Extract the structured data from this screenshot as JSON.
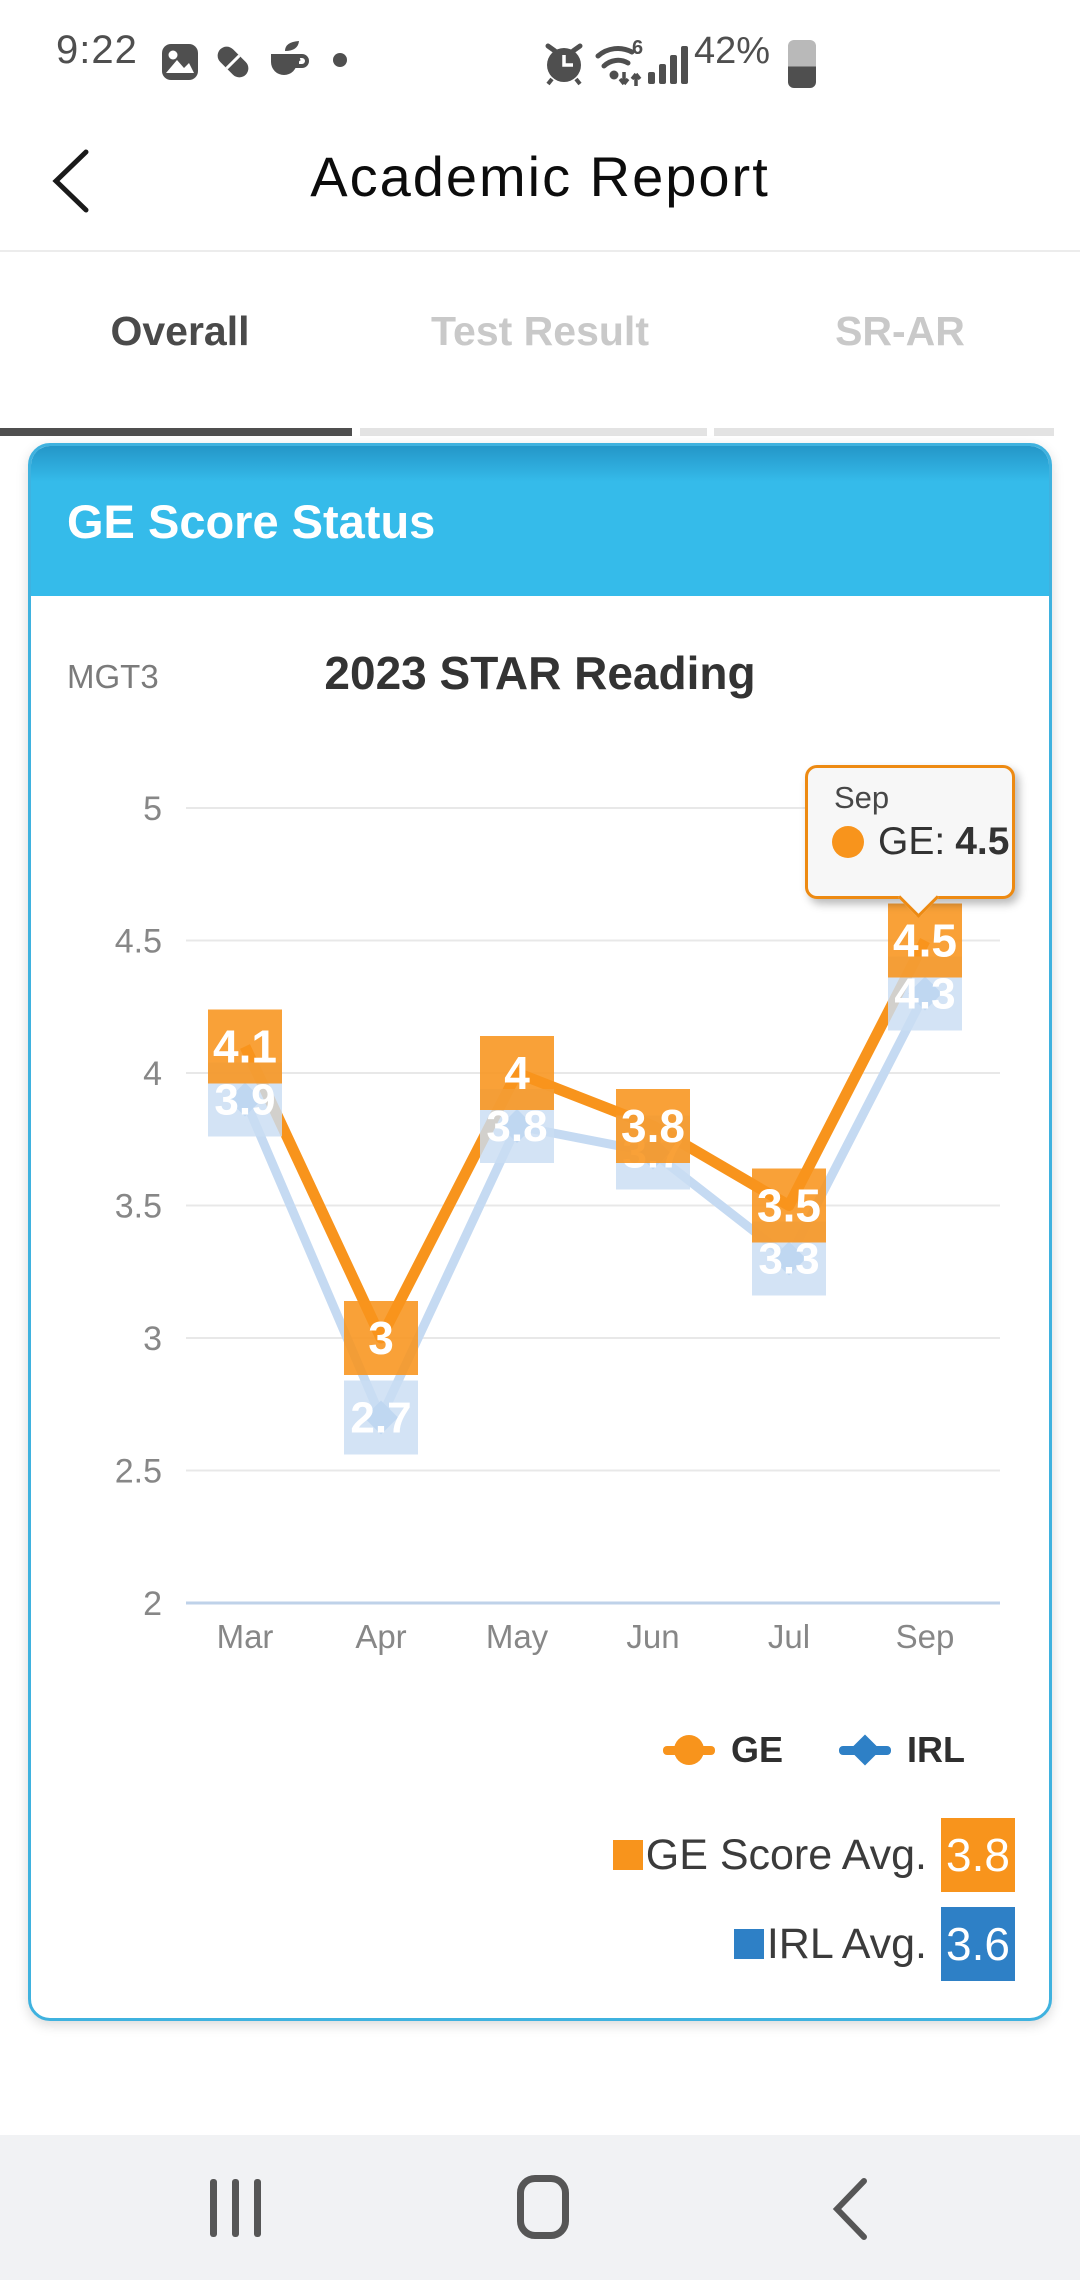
{
  "status_bar": {
    "time": "9:22",
    "battery_percent": "42%",
    "left_icons": [
      "gallery-icon",
      "capsule-icon",
      "coffee-cup-icon",
      "notification-dot-icon"
    ],
    "right_icons": [
      "alarm-icon",
      "wifi6-icon",
      "signal-icon",
      "battery-icon"
    ]
  },
  "header": {
    "title": "Academic Report"
  },
  "tabs": {
    "items": [
      {
        "label": "Overall",
        "active": true
      },
      {
        "label": "Test Result",
        "active": false
      },
      {
        "label": "SR-AR",
        "active": false
      }
    ]
  },
  "card": {
    "header": "GE Score Status",
    "group": "MGT3",
    "chart_title": "2023 STAR Reading"
  },
  "chart_data": {
    "type": "line",
    "title": "2023 STAR Reading",
    "categories": [
      "Mar",
      "Apr",
      "May",
      "Jun",
      "Jul",
      "Sep"
    ],
    "series": [
      {
        "name": "GE",
        "values": [
          4.1,
          3,
          4,
          3.8,
          3.5,
          4.5
        ],
        "labels": [
          "4.1",
          "3",
          "4",
          "3.8",
          "3.5",
          "4.5"
        ]
      },
      {
        "name": "IRL",
        "values": [
          3.9,
          2.7,
          3.8,
          3.7,
          3.3,
          4.3
        ],
        "labels": [
          "3.9",
          "2.7",
          "3.8",
          "3.7",
          "3.3",
          "4.3"
        ]
      }
    ],
    "yticks": [
      5,
      4.5,
      4,
      3.5,
      3,
      2.5,
      2
    ],
    "ylim": [
      2,
      5
    ],
    "grid": true,
    "legend_position": "bottom-right",
    "averages": {
      "GE": 3.8,
      "IRL": 3.6
    }
  },
  "tooltip": {
    "month": "Sep",
    "series": "GE:",
    "value": "4.5"
  },
  "legend": [
    {
      "label": "GE",
      "marker": "circle-marker-icon"
    },
    {
      "label": "IRL",
      "marker": "diamond-marker-icon"
    }
  ],
  "averages": [
    {
      "label": "GE Score Avg.",
      "value": "3.8",
      "color_key": "orange"
    },
    {
      "label": "IRL Avg.",
      "value": "3.6",
      "color_key": "blue"
    }
  ],
  "nav_bar": {
    "icons": [
      "recents-icon",
      "home-icon",
      "back-icon"
    ]
  },
  "colors": {
    "orange": "#F8941C",
    "blue": "#2E80C6",
    "irl_line": "#C5DAF2",
    "irl_marker": "#8FBCE9",
    "irl_label_bg": "#C9DDF3",
    "card_blue": "#35BBEA",
    "card_border": "#3FB2DF",
    "tooltip_border": "#ED8A12",
    "grid": "#E8E8E8",
    "axis": "#BFD2E9",
    "tick_text": "#878787",
    "label_text": "#FFFFFF"
  }
}
